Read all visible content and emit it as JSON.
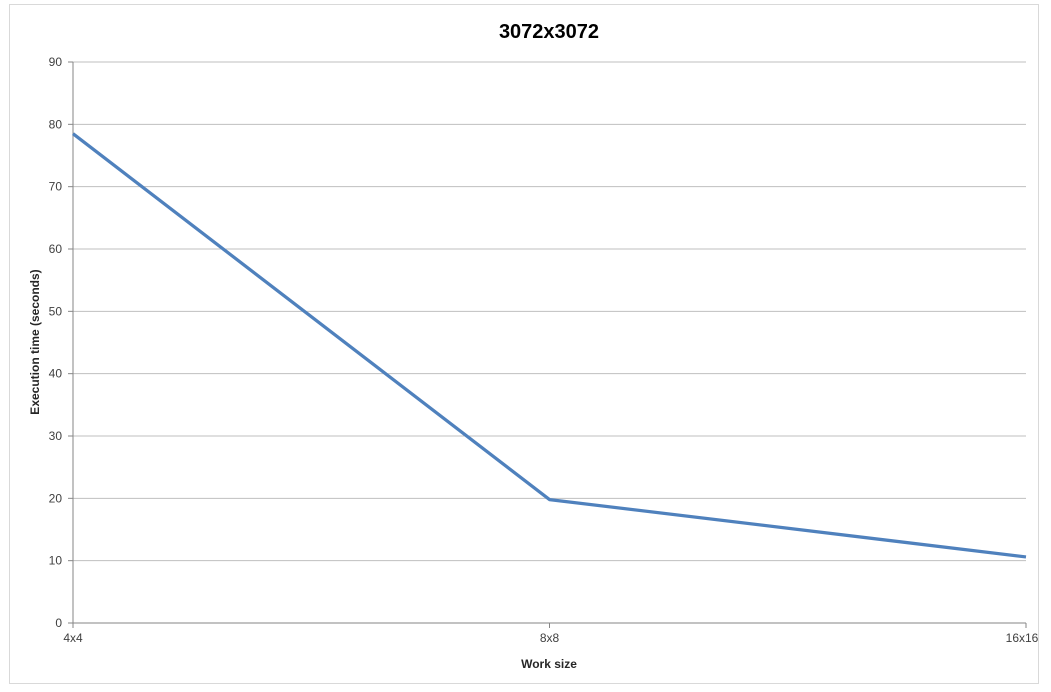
{
  "chart_data": {
    "type": "line",
    "title": "3072x3072",
    "xlabel": "Work size",
    "ylabel": "Execution time (seconds)",
    "categories": [
      "4x4",
      "8x8",
      "16x16"
    ],
    "series": [
      {
        "values": [
          78.5,
          19.8,
          10.6
        ],
        "color": "#4f81bd"
      }
    ],
    "ylim": [
      0,
      90
    ],
    "yticks": [
      0,
      10,
      20,
      30,
      40,
      50,
      60,
      70,
      80,
      90
    ],
    "grid": true,
    "legend": "none",
    "gridline_color": "#bfbfbf",
    "axis_color": "#868686"
  }
}
